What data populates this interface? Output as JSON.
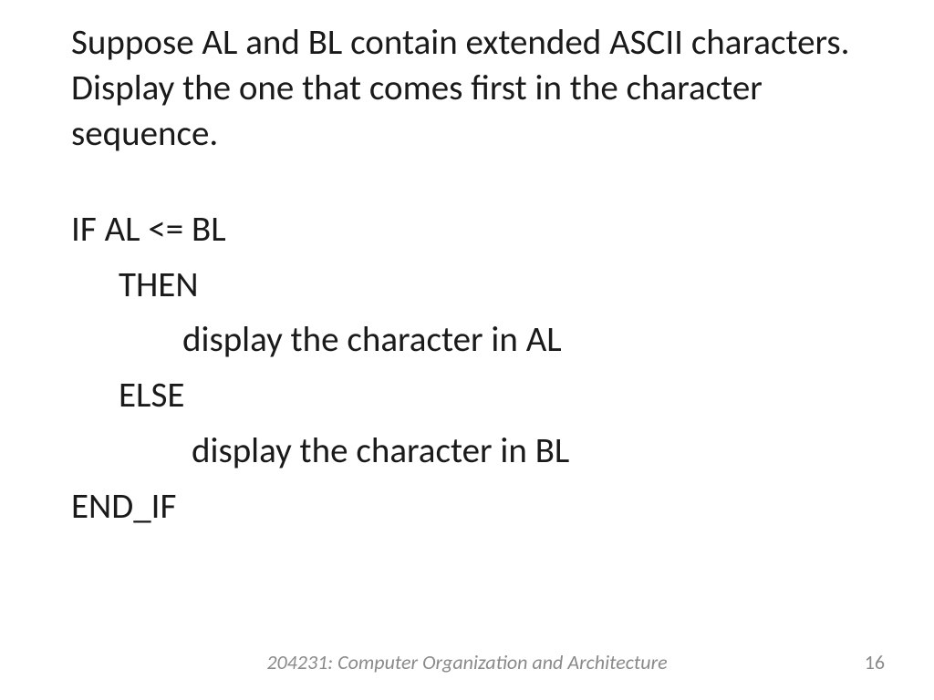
{
  "slide": {
    "title": "Suppose AL and BL contain extended ASCII characters. Display the one that comes first in the character sequence.",
    "code": {
      "line1": "IF AL <= BL",
      "line2": "THEN",
      "line3": "display the character in AL",
      "line4": "ELSE",
      "line5": "display the character in BL",
      "line6": "END_IF"
    }
  },
  "footer": {
    "course": "204231: Computer Organization and Architecture",
    "page_number": "16"
  },
  "styling": {
    "background_color": "#ffffff",
    "text_color": "#1a1a1a",
    "footer_text_color": "#8a8a8a",
    "title_font_size": 39,
    "code_font_size": 39,
    "footer_font_size": 22,
    "font_family": "Calibri"
  }
}
